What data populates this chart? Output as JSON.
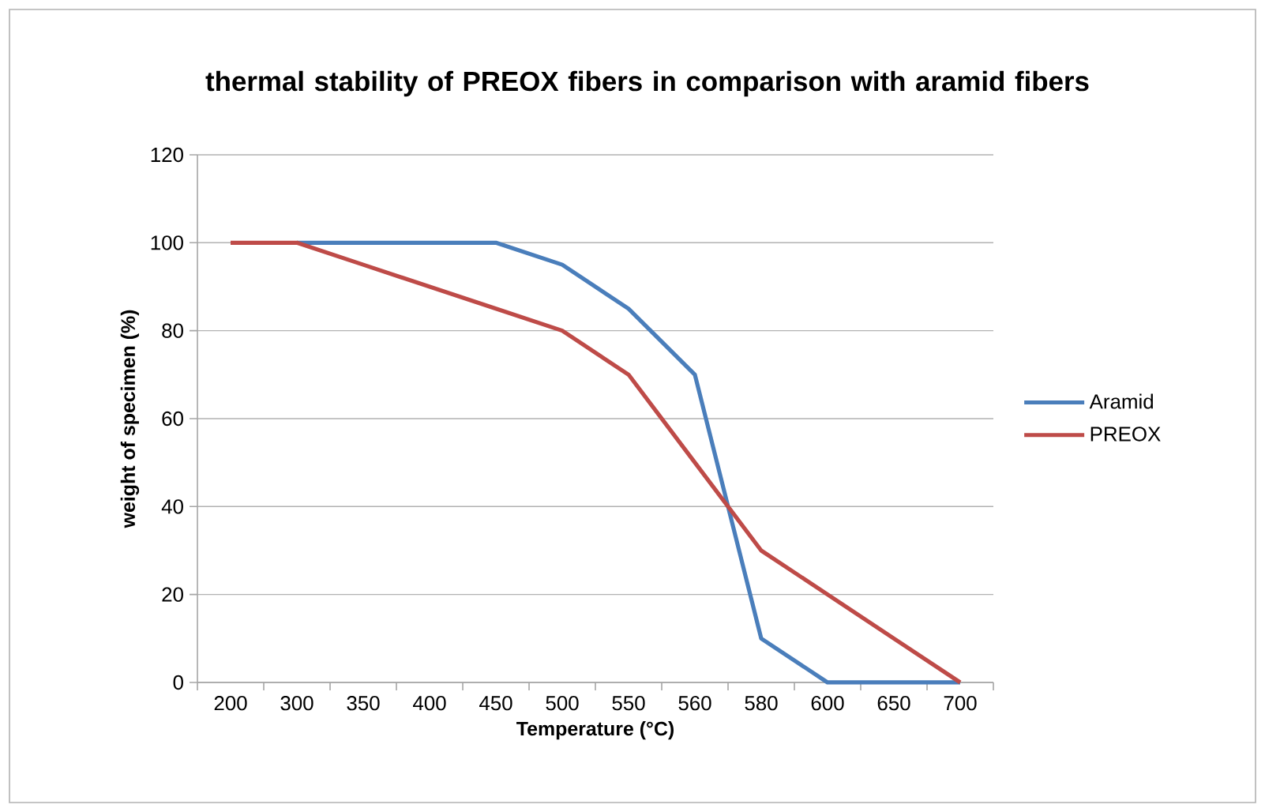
{
  "chart_data": {
    "type": "line",
    "title": "thermal stability of PREOX fibers in comparison with aramid fibers",
    "xlabel": "Temperature (°C)",
    "ylabel": "weight of specimen (%)",
    "categories": [
      "200",
      "300",
      "350",
      "400",
      "450",
      "500",
      "550",
      "560",
      "580",
      "600",
      "650",
      "700"
    ],
    "series": [
      {
        "name": "Aramid",
        "color": "#4a7ebb",
        "values": [
          null,
          100,
          100,
          100,
          100,
          95,
          85,
          70,
          10,
          0,
          0,
          0
        ]
      },
      {
        "name": "PREOX",
        "color": "#be4b48",
        "values": [
          100,
          100,
          95,
          90,
          85,
          80,
          70,
          50,
          30,
          20,
          10,
          0
        ]
      }
    ],
    "ylim": [
      0,
      120
    ],
    "yticks": [
      0,
      20,
      40,
      60,
      80,
      100,
      120
    ],
    "grid": "y",
    "legend": "right",
    "marker": "none",
    "line_style": "solid"
  }
}
